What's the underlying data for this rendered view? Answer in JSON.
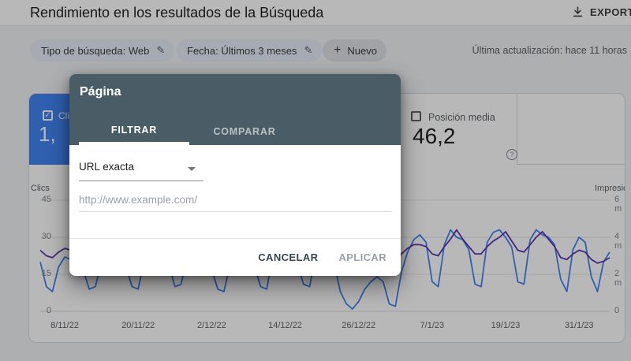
{
  "header": {
    "title": "Rendimiento en los resultados de la Búsqueda",
    "export_label": "EXPORTAR"
  },
  "filters": {
    "search_type_chip": "Tipo de búsqueda: Web",
    "date_chip": "Fecha: Últimos 3 meses",
    "new_chip": "Nuevo",
    "last_update": "Última actualización: hace 11 horas"
  },
  "metrics": {
    "clicks_card": {
      "label": "Clics totales",
      "value": "1,"
    },
    "position_card": {
      "label": "Posición media",
      "value": "46,2",
      "help_icon": "?"
    }
  },
  "dialog": {
    "title": "Página",
    "tabs": [
      {
        "label": "FILTRAR",
        "active": true
      },
      {
        "label": "COMPARAR",
        "active": false
      }
    ],
    "filter_type_value": "URL exacta",
    "input_placeholder": "http://www.example.com/",
    "cancel_label": "CANCELAR",
    "apply_label": "APLICAR"
  },
  "colors": {
    "clicks_accent": "#4285f4",
    "impressions_accent": "#5e35b1",
    "dialog_header": "#4a5c66"
  },
  "chart_data": {
    "type": "line",
    "left_axis": {
      "label": "Clics",
      "max": 45,
      "ticks": [
        {
          "v": 0,
          "t": "0"
        },
        {
          "v": 15,
          "t": "15"
        },
        {
          "v": 30,
          "t": "30"
        },
        {
          "v": 45,
          "t": "45"
        }
      ]
    },
    "right_axis": {
      "label": "Impresiones",
      "max": 6,
      "ticks": [
        {
          "v": 0,
          "t": "0"
        },
        {
          "v": 2,
          "t": "2 m"
        },
        {
          "v": 4,
          "t": "4 m"
        },
        {
          "v": 6,
          "t": "6 m"
        }
      ]
    },
    "days_total": 93,
    "x_labels": [
      {
        "day": 4,
        "t": "8/11/22"
      },
      {
        "day": 16,
        "t": "20/11/22"
      },
      {
        "day": 28,
        "t": "2/12/22"
      },
      {
        "day": 40,
        "t": "14/12/22"
      },
      {
        "day": 52,
        "t": "26/12/22"
      },
      {
        "day": 64,
        "t": "7/1/23"
      },
      {
        "day": 76,
        "t": "19/1/23"
      },
      {
        "day": 88,
        "t": "31/1/23"
      }
    ],
    "grid": true,
    "legend": "none",
    "series": [
      {
        "name": "Clics",
        "color": "#4285f4",
        "axis": "left",
        "max": 45,
        "values": [
          20,
          10,
          8,
          18,
          22,
          21,
          19,
          17,
          9,
          10,
          20,
          24,
          22,
          20,
          18,
          10,
          9,
          21,
          25,
          23,
          26,
          19,
          10,
          11,
          22,
          27,
          24,
          21,
          17,
          9,
          8,
          19,
          23,
          25,
          22,
          18,
          10,
          9,
          23,
          26,
          24,
          22,
          19,
          11,
          10,
          24,
          26,
          23,
          20,
          8,
          3,
          1,
          4,
          9,
          12,
          14,
          12,
          3,
          2,
          16,
          24,
          29,
          31,
          28,
          12,
          10,
          27,
          33,
          30,
          29,
          25,
          11,
          10,
          28,
          32,
          33,
          30,
          26,
          12,
          11,
          29,
          33,
          31,
          30,
          27,
          13,
          8,
          25,
          30,
          28,
          14,
          8,
          20,
          24
        ]
      },
      {
        "name": "Impresiones",
        "color": "#5e35b1",
        "axis": "right",
        "max": 6,
        "values": [
          3.3,
          3.0,
          2.9,
          3.2,
          3.4,
          3.3,
          3.3,
          3.2,
          2.9,
          3.0,
          3.3,
          3.5,
          3.4,
          3.3,
          3.2,
          2.9,
          2.9,
          3.3,
          3.6,
          3.5,
          3.5,
          3.3,
          3.0,
          3.0,
          3.4,
          3.6,
          3.5,
          3.4,
          3.2,
          2.9,
          2.9,
          3.3,
          3.5,
          3.6,
          3.4,
          3.2,
          3.0,
          2.9,
          3.4,
          3.6,
          3.5,
          3.4,
          3.3,
          3.0,
          3.0,
          3.5,
          3.6,
          3.5,
          3.3,
          2.6,
          2.2,
          2.1,
          2.4,
          2.7,
          2.9,
          3.0,
          2.9,
          2.7,
          2.7,
          3.1,
          3.4,
          3.6,
          3.6,
          3.5,
          3.1,
          3.0,
          3.5,
          3.9,
          4.4,
          3.9,
          3.5,
          3.1,
          3.1,
          3.5,
          3.8,
          4.0,
          4.3,
          3.8,
          3.3,
          3.2,
          3.6,
          4.0,
          4.3,
          3.9,
          3.5,
          2.9,
          2.8,
          3.1,
          3.3,
          3.2,
          2.8,
          2.6,
          2.7,
          2.9
        ]
      }
    ]
  }
}
